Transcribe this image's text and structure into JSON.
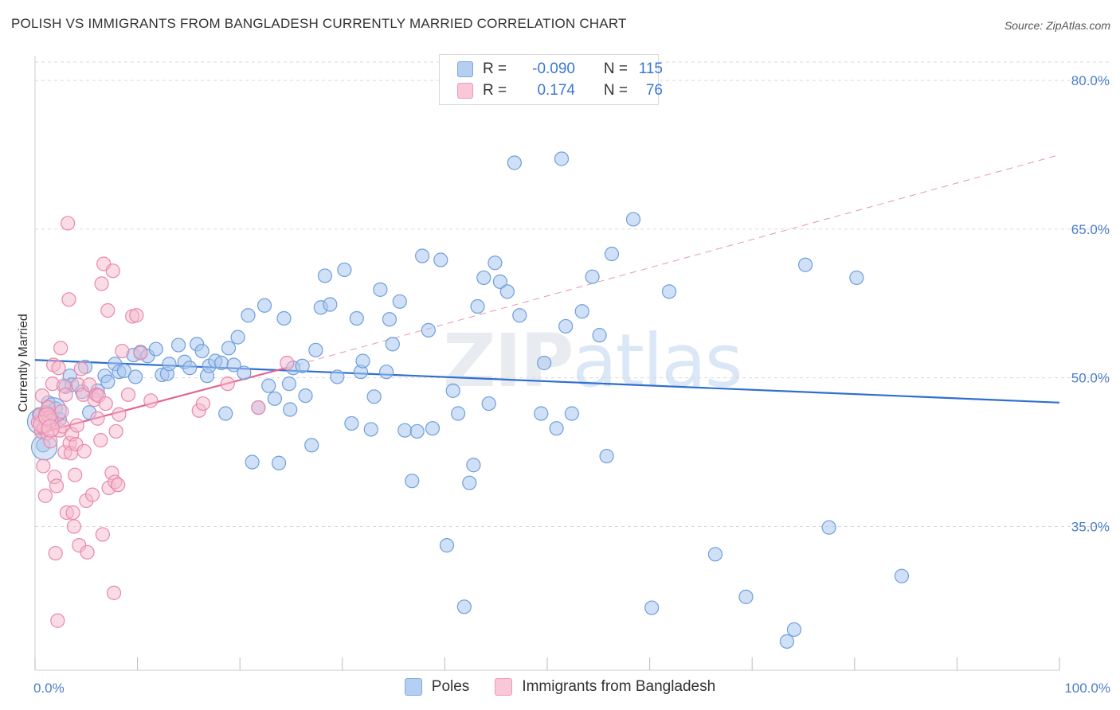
{
  "header": {
    "title": "POLISH VS IMMIGRANTS FROM BANGLADESH CURRENTLY MARRIED CORRELATION CHART",
    "source": "Source: ZipAtlas.com"
  },
  "watermark": {
    "zip": "ZIP",
    "atlas": "atlas"
  },
  "legend": {
    "rows": [
      {
        "r_label": "R =",
        "r_value": "-0.090",
        "n_label": "N =",
        "n_value": "115"
      },
      {
        "r_label": "R =",
        "r_value": "0.174",
        "n_label": "N =",
        "n_value": "76"
      }
    ]
  },
  "bottom_legend": {
    "poles": "Poles",
    "bangladesh": "Immigrants from Bangladesh"
  },
  "colors": {
    "poles_fill": "#a9c6ee",
    "poles_stroke": "#6f9fdc",
    "poles_line": "#2f6fd0",
    "bang_fill": "#f6b9cd",
    "bang_stroke": "#e888aa",
    "bang_line": "#e06692"
  },
  "chart_data": {
    "type": "scatter",
    "title": "POLISH VS IMMIGRANTS FROM BANGLADESH CURRENTLY MARRIED CORRELATION CHART",
    "xlabel": "",
    "ylabel": "Currently Married",
    "xlim": [
      0,
      100
    ],
    "ylim": [
      20.5,
      82.5
    ],
    "x_tick_labels": [
      "0.0%",
      "100.0%"
    ],
    "y_ticks": [
      35,
      50,
      65,
      80
    ],
    "y_tick_labels": [
      "35.0%",
      "50.0%",
      "65.0%",
      "80.0%"
    ],
    "series": [
      {
        "name": "Poles",
        "R": -0.09,
        "N": 115,
        "trend": {
          "x": [
            0,
            100
          ],
          "y": [
            51.8,
            47.5
          ]
        },
        "points": [
          [
            0.4,
            46.3
          ],
          [
            0.8,
            43.2
          ],
          [
            1.0,
            46.5
          ],
          [
            1.3,
            47.5
          ],
          [
            1.6,
            46.2
          ],
          [
            2.0,
            46.9
          ],
          [
            2.4,
            45.8
          ],
          [
            3.0,
            49.1
          ],
          [
            3.4,
            50.2
          ],
          [
            3.6,
            49.3
          ],
          [
            4.6,
            48.6
          ],
          [
            4.9,
            51.1
          ],
          [
            5.3,
            46.5
          ],
          [
            6.1,
            48.7
          ],
          [
            6.8,
            50.2
          ],
          [
            7.1,
            49.6
          ],
          [
            7.8,
            51.4
          ],
          [
            8.2,
            50.6
          ],
          [
            8.7,
            50.7
          ],
          [
            9.6,
            52.3
          ],
          [
            9.8,
            50.1
          ],
          [
            10.3,
            52.6
          ],
          [
            11.0,
            52.2
          ],
          [
            11.8,
            52.9
          ],
          [
            12.4,
            50.3
          ],
          [
            12.9,
            50.4
          ],
          [
            13.1,
            51.4
          ],
          [
            14.0,
            53.3
          ],
          [
            14.6,
            51.6
          ],
          [
            15.1,
            51.0
          ],
          [
            15.8,
            53.4
          ],
          [
            16.3,
            52.7
          ],
          [
            16.8,
            50.2
          ],
          [
            17.0,
            51.2
          ],
          [
            17.6,
            51.7
          ],
          [
            18.2,
            51.5
          ],
          [
            18.6,
            46.4
          ],
          [
            18.9,
            53.0
          ],
          [
            19.4,
            51.3
          ],
          [
            19.8,
            54.1
          ],
          [
            20.4,
            50.5
          ],
          [
            20.8,
            56.3
          ],
          [
            21.2,
            41.5
          ],
          [
            21.8,
            47.0
          ],
          [
            22.4,
            57.3
          ],
          [
            22.8,
            49.2
          ],
          [
            23.4,
            47.9
          ],
          [
            23.8,
            41.4
          ],
          [
            24.3,
            56.0
          ],
          [
            24.8,
            49.4
          ],
          [
            24.9,
            46.8
          ],
          [
            25.2,
            51.0
          ],
          [
            26.1,
            51.2
          ],
          [
            26.4,
            48.2
          ],
          [
            27.0,
            43.2
          ],
          [
            27.4,
            52.8
          ],
          [
            27.9,
            57.1
          ],
          [
            28.3,
            60.3
          ],
          [
            28.8,
            57.4
          ],
          [
            29.5,
            50.1
          ],
          [
            30.2,
            60.9
          ],
          [
            30.9,
            45.4
          ],
          [
            31.4,
            56.0
          ],
          [
            31.8,
            50.6
          ],
          [
            32.0,
            51.7
          ],
          [
            32.8,
            44.8
          ],
          [
            33.1,
            48.1
          ],
          [
            33.7,
            58.9
          ],
          [
            34.3,
            50.6
          ],
          [
            34.6,
            55.9
          ],
          [
            34.9,
            53.4
          ],
          [
            35.6,
            57.7
          ],
          [
            36.1,
            44.7
          ],
          [
            36.8,
            39.6
          ],
          [
            37.3,
            44.6
          ],
          [
            37.8,
            62.3
          ],
          [
            38.4,
            54.8
          ],
          [
            38.8,
            44.9
          ],
          [
            39.6,
            61.9
          ],
          [
            40.2,
            33.1
          ],
          [
            40.8,
            48.7
          ],
          [
            41.3,
            46.4
          ],
          [
            41.9,
            26.9
          ],
          [
            42.4,
            39.4
          ],
          [
            42.8,
            41.2
          ],
          [
            43.2,
            57.2
          ],
          [
            43.8,
            60.1
          ],
          [
            44.3,
            47.4
          ],
          [
            44.9,
            61.6
          ],
          [
            45.4,
            59.7
          ],
          [
            46.1,
            58.7
          ],
          [
            46.8,
            71.7
          ],
          [
            47.3,
            56.3
          ],
          [
            47.9,
            78.5
          ],
          [
            48.1,
            79.0
          ],
          [
            49.4,
            46.4
          ],
          [
            49.7,
            51.5
          ],
          [
            50.9,
            44.9
          ],
          [
            51.4,
            72.1
          ],
          [
            51.8,
            55.2
          ],
          [
            52.4,
            46.4
          ],
          [
            53.4,
            56.7
          ],
          [
            54.4,
            60.2
          ],
          [
            55.1,
            54.3
          ],
          [
            55.8,
            42.1
          ],
          [
            56.3,
            62.5
          ],
          [
            58.4,
            66.0
          ],
          [
            60.2,
            26.8
          ],
          [
            61.9,
            58.7
          ],
          [
            66.4,
            32.2
          ],
          [
            69.4,
            27.9
          ],
          [
            73.4,
            23.4
          ],
          [
            74.1,
            24.6
          ],
          [
            75.2,
            61.4
          ],
          [
            77.5,
            34.9
          ],
          [
            80.2,
            60.1
          ],
          [
            84.6,
            30.0
          ]
        ],
        "large_points": [
          [
            0.5,
            45.6
          ],
          [
            0.9,
            43.0
          ],
          [
            1.8,
            46.7
          ]
        ]
      },
      {
        "name": "Immigrants from Bangladesh",
        "R": 0.174,
        "N": 76,
        "trend": {
          "x": [
            0,
            24.5
          ],
          "y": [
            44.3,
            51.0
          ]
        },
        "trend_extension": {
          "x": [
            24.5,
            100
          ],
          "y": [
            51.0,
            72.5
          ]
        },
        "points": [
          [
            0.3,
            45.5
          ],
          [
            0.5,
            46.3
          ],
          [
            0.6,
            44.6
          ],
          [
            0.7,
            48.2
          ],
          [
            0.8,
            41.1
          ],
          [
            0.9,
            45.0
          ],
          [
            1.0,
            38.1
          ],
          [
            1.1,
            46.5
          ],
          [
            1.2,
            44.4
          ],
          [
            1.3,
            47.0
          ],
          [
            1.4,
            46.0
          ],
          [
            1.5,
            43.6
          ],
          [
            1.6,
            45.7
          ],
          [
            1.7,
            49.4
          ],
          [
            1.8,
            51.3
          ],
          [
            1.9,
            40.0
          ],
          [
            2.0,
            32.3
          ],
          [
            2.1,
            39.1
          ],
          [
            2.2,
            25.5
          ],
          [
            2.3,
            51.0
          ],
          [
            2.4,
            44.7
          ],
          [
            2.5,
            53.0
          ],
          [
            2.6,
            46.6
          ],
          [
            2.7,
            45.1
          ],
          [
            2.8,
            49.2
          ],
          [
            2.9,
            42.5
          ],
          [
            3.0,
            48.3
          ],
          [
            3.1,
            36.4
          ],
          [
            3.2,
            65.6
          ],
          [
            3.3,
            57.9
          ],
          [
            3.4,
            43.4
          ],
          [
            3.5,
            42.4
          ],
          [
            3.6,
            44.3
          ],
          [
            3.7,
            36.4
          ],
          [
            3.8,
            35.0
          ],
          [
            3.9,
            40.2
          ],
          [
            4.0,
            43.3
          ],
          [
            4.1,
            45.2
          ],
          [
            4.2,
            49.3
          ],
          [
            4.3,
            33.1
          ],
          [
            4.5,
            50.9
          ],
          [
            4.7,
            48.3
          ],
          [
            4.8,
            42.6
          ],
          [
            5.0,
            37.6
          ],
          [
            5.1,
            32.4
          ],
          [
            5.3,
            49.3
          ],
          [
            5.6,
            38.2
          ],
          [
            5.8,
            47.8
          ],
          [
            6.0,
            48.3
          ],
          [
            6.1,
            45.9
          ],
          [
            6.2,
            48.2
          ],
          [
            6.4,
            43.7
          ],
          [
            6.5,
            59.5
          ],
          [
            6.6,
            34.2
          ],
          [
            6.7,
            61.5
          ],
          [
            6.9,
            47.4
          ],
          [
            7.1,
            56.8
          ],
          [
            7.2,
            38.9
          ],
          [
            7.5,
            40.4
          ],
          [
            7.6,
            60.8
          ],
          [
            7.7,
            28.3
          ],
          [
            7.8,
            39.5
          ],
          [
            7.9,
            44.6
          ],
          [
            8.1,
            39.2
          ],
          [
            8.2,
            46.3
          ],
          [
            8.5,
            52.7
          ],
          [
            9.1,
            48.3
          ],
          [
            9.5,
            56.2
          ],
          [
            9.9,
            56.3
          ],
          [
            10.3,
            52.5
          ],
          [
            11.3,
            47.7
          ],
          [
            16.0,
            46.7
          ],
          [
            16.4,
            47.4
          ],
          [
            18.8,
            49.4
          ],
          [
            21.8,
            47.0
          ],
          [
            24.6,
            51.5
          ]
        ],
        "large_points": [
          [
            0.7,
            45.3
          ],
          [
            1.2,
            46.1
          ],
          [
            1.5,
            44.9
          ]
        ]
      }
    ]
  }
}
